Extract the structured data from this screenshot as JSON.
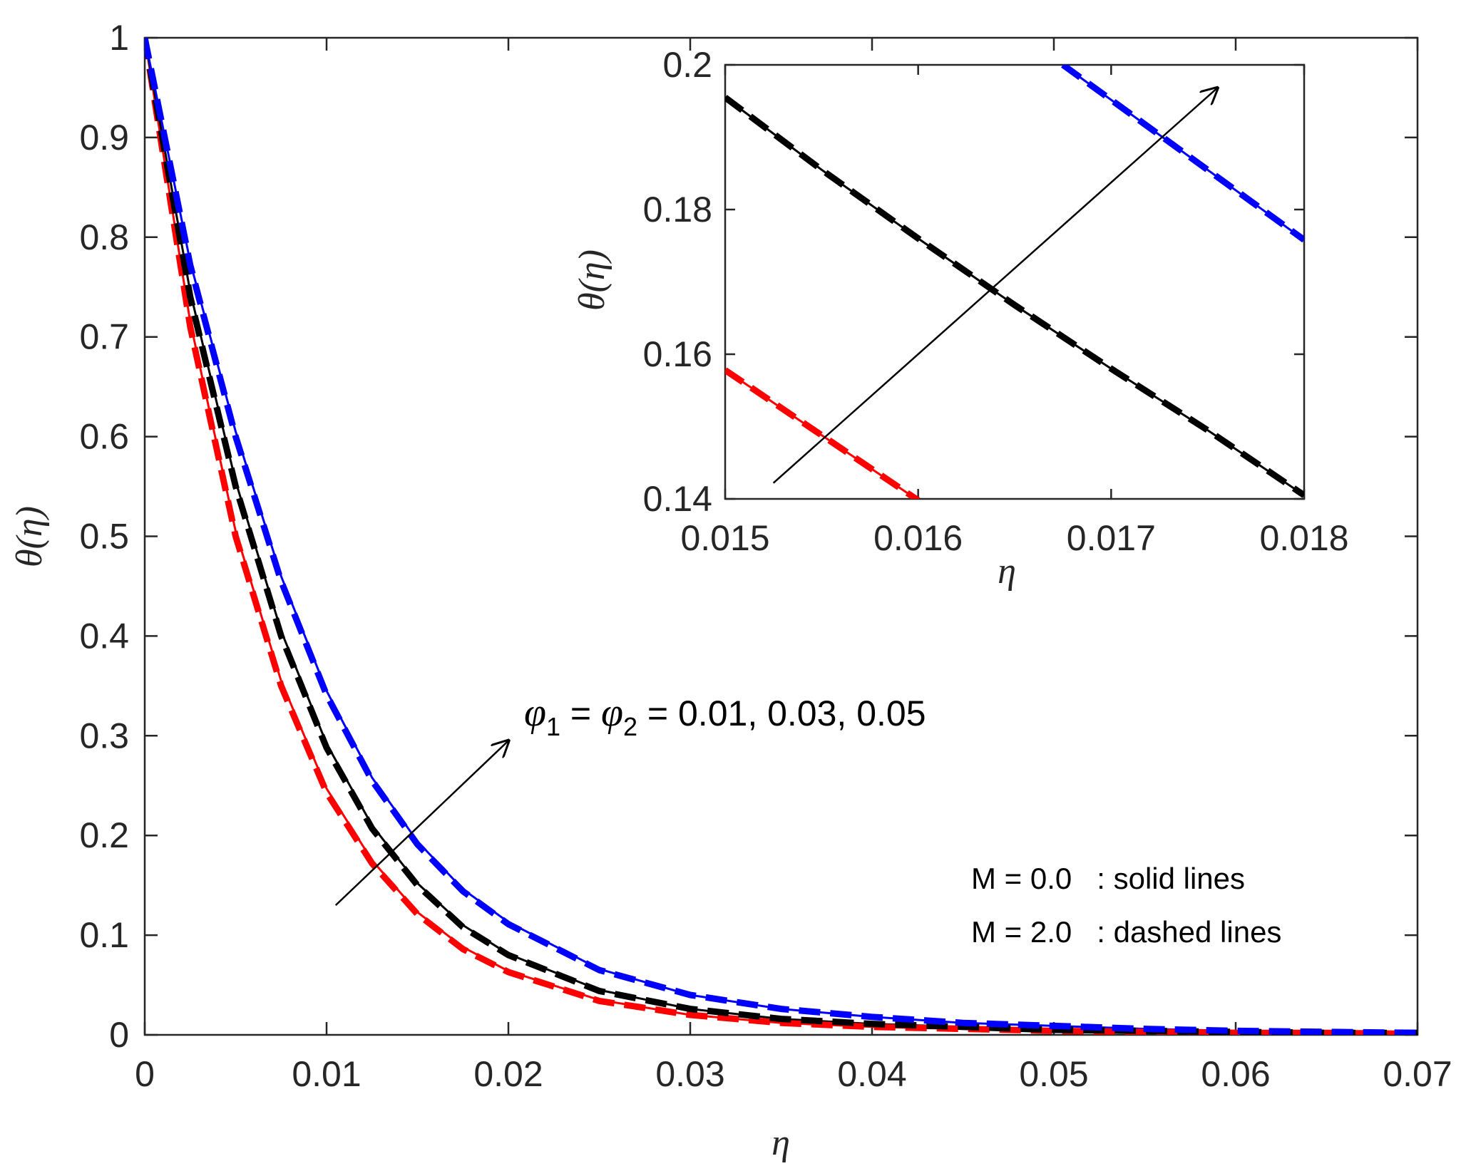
{
  "chart_data": [
    {
      "type": "line",
      "role": "main",
      "xlabel": "η",
      "ylabel": "θ(η)",
      "xlim": [
        0,
        0.07
      ],
      "ylim": [
        0,
        1
      ],
      "x_ticks": [
        "0",
        "0.01",
        "0.02",
        "0.03",
        "0.04",
        "0.05",
        "0.06",
        "0.07"
      ],
      "y_ticks": [
        "0",
        "0.1",
        "0.2",
        "0.3",
        "0.4",
        "0.5",
        "0.6",
        "0.7",
        "0.8",
        "0.9",
        "1"
      ],
      "x": [
        0,
        0.0025,
        0.005,
        0.0075,
        0.01,
        0.0125,
        0.015,
        0.0175,
        0.02,
        0.025,
        0.03,
        0.035,
        0.04,
        0.045,
        0.05,
        0.055,
        0.06,
        0.065,
        0.07
      ],
      "series": [
        {
          "name": "φ1 = φ2 = 0.01, M = 0.0",
          "color": "#ff0000",
          "style": "solid",
          "values": [
            1.0,
            0.715,
            0.505,
            0.355,
            0.247,
            0.175,
            0.123,
            0.088,
            0.064,
            0.035,
            0.02,
            0.012,
            0.008,
            0.006,
            0.004,
            0.003,
            0.002,
            0.002,
            0.001
          ]
        },
        {
          "name": "φ1 = φ2 = 0.01, M = 2.0",
          "color": "#ff0000",
          "style": "dashed",
          "values": [
            1.0,
            0.71,
            0.5,
            0.35,
            0.243,
            0.172,
            0.121,
            0.086,
            0.063,
            0.034,
            0.02,
            0.012,
            0.008,
            0.006,
            0.004,
            0.003,
            0.002,
            0.002,
            0.001
          ]
        },
        {
          "name": "φ1 = φ2 = 0.03, M = 0.0",
          "color": "#000000",
          "style": "solid",
          "values": [
            1.0,
            0.745,
            0.555,
            0.405,
            0.292,
            0.21,
            0.152,
            0.11,
            0.081,
            0.045,
            0.026,
            0.016,
            0.011,
            0.008,
            0.005,
            0.004,
            0.003,
            0.002,
            0.002
          ]
        },
        {
          "name": "φ1 = φ2 = 0.03, M = 2.0",
          "color": "#000000",
          "style": "dashed",
          "values": [
            1.0,
            0.74,
            0.55,
            0.4,
            0.288,
            0.207,
            0.15,
            0.108,
            0.08,
            0.044,
            0.026,
            0.016,
            0.011,
            0.008,
            0.005,
            0.004,
            0.003,
            0.002,
            0.002
          ]
        },
        {
          "name": "φ1 = φ2 = 0.05, M = 0.0",
          "color": "#0000ff",
          "style": "solid",
          "values": [
            1.0,
            0.775,
            0.605,
            0.46,
            0.345,
            0.258,
            0.194,
            0.146,
            0.113,
            0.066,
            0.04,
            0.026,
            0.018,
            0.012,
            0.009,
            0.006,
            0.004,
            0.003,
            0.002
          ]
        },
        {
          "name": "φ1 = φ2 = 0.05, M = 2.0",
          "color": "#0000ff",
          "style": "dashed",
          "values": [
            1.0,
            0.772,
            0.6,
            0.455,
            0.341,
            0.255,
            0.191,
            0.144,
            0.111,
            0.065,
            0.04,
            0.026,
            0.018,
            0.012,
            0.009,
            0.006,
            0.004,
            0.003,
            0.002
          ]
        }
      ],
      "annotations": [
        {
          "text_parts": [
            "φ",
            "1",
            " = ",
            "φ",
            "2",
            " = 0.01, 0.03, 0.05"
          ],
          "arrow_from": [
            0.0105,
            0.13
          ],
          "arrow_to": [
            0.02,
            0.295
          ]
        }
      ],
      "legend": [
        "M = 0.0   : solid lines",
        "M = 2.0   : dashed lines"
      ],
      "legend_position": "bottom-right"
    },
    {
      "type": "line",
      "role": "inset",
      "xlabel": "η",
      "ylabel": "θ(η)",
      "xlim": [
        0.015,
        0.018
      ],
      "ylim": [
        0.14,
        0.2
      ],
      "x_ticks": [
        "0.015",
        "0.016",
        "0.017",
        "0.018"
      ],
      "y_ticks": [
        "0.14",
        "0.16",
        "0.18",
        "0.2"
      ],
      "series": [
        {
          "name": "φ1 = φ2 = 0.01",
          "color": "#ff0000",
          "x": [
            0.015,
            0.016
          ],
          "values": [
            0.1578,
            0.1398
          ]
        },
        {
          "name": "φ1 = φ2 = 0.03",
          "color": "#000000",
          "x": [
            0.015,
            0.0155,
            0.016,
            0.0165,
            0.017,
            0.0175,
            0.018
          ],
          "values": [
            0.1955,
            0.1855,
            0.176,
            0.1668,
            0.158,
            0.1495,
            0.1405
          ]
        },
        {
          "name": "φ1 = φ2 = 0.05",
          "color": "#0000ff",
          "x": [
            0.01675,
            0.018
          ],
          "values": [
            0.2,
            0.1758
          ]
        }
      ],
      "arrow_from": [
        0.01525,
        0.1422
      ],
      "arrow_to": [
        0.01755,
        0.1968
      ]
    }
  ]
}
